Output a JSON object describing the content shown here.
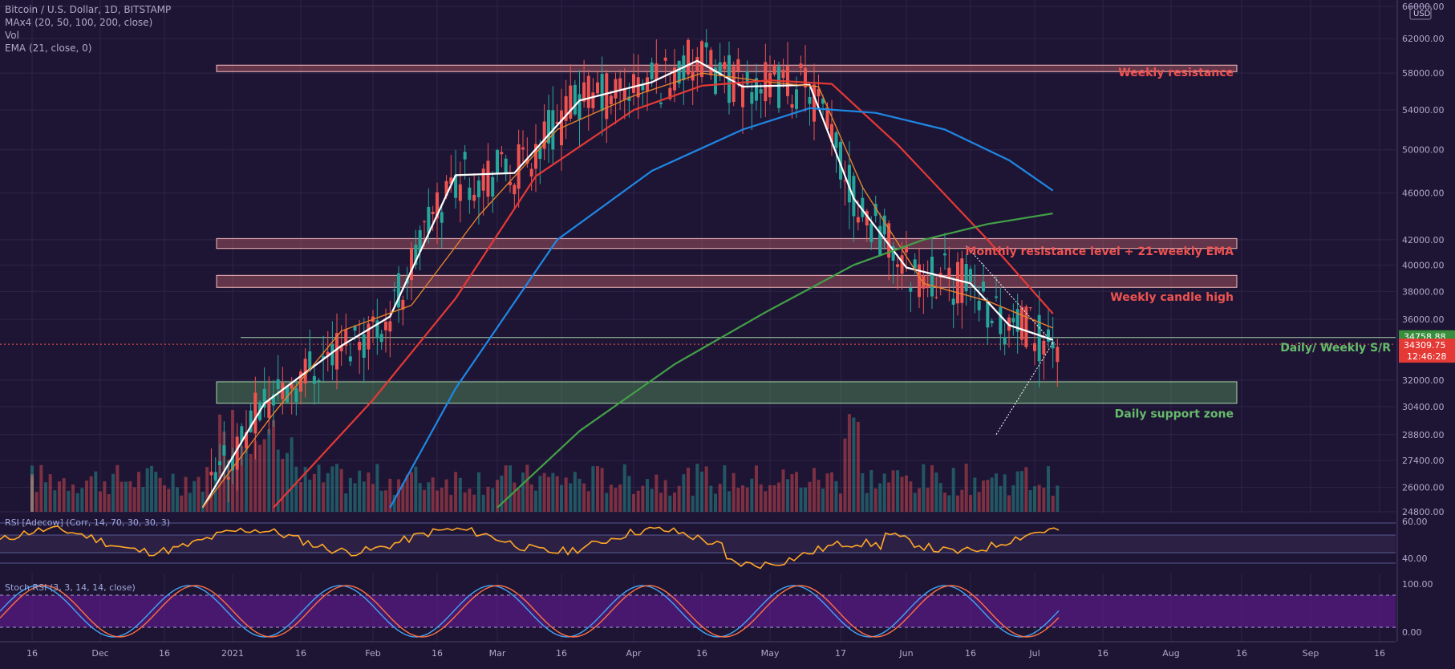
{
  "header": {
    "lines": [
      "Bitcoin / U.S. Dollar, 1D, BITSTAMP",
      "MAx4 (20, 50, 100, 200, close)",
      "Vol",
      "EMA (21, close, 0)"
    ]
  },
  "price_axis": {
    "currency": "USD",
    "ticks": [
      "66000.00",
      "62000.00",
      "58000.00",
      "54000.00",
      "50000.00",
      "46000.00",
      "42000.00",
      "40000.00",
      "38000.00",
      "36000.00",
      "32000.00",
      "30400.00",
      "28800.00",
      "27400.00",
      "26000.00",
      "24800.00"
    ]
  },
  "rsi_axis": {
    "ticks": [
      "60.00",
      "40.00"
    ]
  },
  "stoch_axis": {
    "ticks": [
      "100.00",
      "0.00"
    ]
  },
  "time_axis": {
    "ticks": [
      "16",
      "Dec",
      "16",
      "2021",
      "16",
      "Feb",
      "16",
      "Mar",
      "16",
      "Apr",
      "16",
      "May",
      "17",
      "Jun",
      "16",
      "Jul",
      "16",
      "Aug",
      "16",
      "Sep",
      "16"
    ]
  },
  "price_labels": {
    "level_price": "34758.88",
    "last_price": "34309.75",
    "countdown": "12:46:28"
  },
  "annotations": {
    "weekly_resistance": "Weekly resistance",
    "monthly_resistance": "Monthly resistance level + 21-weekly EMA",
    "weekly_candle_high": "Weekly candle high",
    "daily_weekly_sr": "Daily/ Weekly S/R",
    "daily_support": "Daily support zone"
  },
  "indicators": {
    "rsi_label": "RSI [Adecow] (Corr, 14, 70, 30, 30, 3)",
    "stoch_label": "Stoch RSI (3, 3, 14, 14, close)"
  },
  "colors": {
    "background": "#1e1535",
    "up_candle": "#26a69a",
    "down_candle": "#ef5350",
    "ma20": "#ffffff",
    "ema21": "#e8822a",
    "ma50": "#e53935",
    "ma100": "#1e88e5",
    "ma200": "#43a047",
    "resistance_zone": "#e57373",
    "support_zone": "#66bb6a",
    "stoch_band": "#6a1b9a"
  },
  "chart_data": {
    "type": "line",
    "title": "Bitcoin / U.S. Dollar, 1D, BITSTAMP",
    "ylabel": "USD",
    "ylim": [
      24800,
      66000
    ],
    "resistance_zones": [
      {
        "name": "Weekly resistance",
        "low": 58300,
        "high": 58900
      },
      {
        "name": "Monthly resistance level + 21-weekly EMA",
        "low": 41300,
        "high": 42100
      },
      {
        "name": "Weekly candle high",
        "low": 38300,
        "high": 39200
      }
    ],
    "support_zones": [
      {
        "name": "Daily support zone",
        "low": 30600,
        "high": 31900
      }
    ],
    "sr_level": 34758.88,
    "last_close": 34309.75,
    "series": [
      {
        "name": "MA 20",
        "x": [
          "2020-12-25",
          "2021-01-08",
          "2021-01-25",
          "2021-02-05",
          "2021-02-20",
          "2021-03-05",
          "2021-03-20",
          "2021-04-05",
          "2021-04-15",
          "2021-04-25",
          "2021-05-10",
          "2021-05-20",
          "2021-06-01",
          "2021-06-16",
          "2021-06-25",
          "2021-07-05"
        ],
        "y": [
          25000,
          30600,
          34200,
          36200,
          47600,
          47800,
          55000,
          57000,
          59400,
          56500,
          56700,
          45500,
          39800,
          38600,
          35600,
          34600
        ]
      },
      {
        "name": "EMA 21",
        "x": [
          "2020-12-25",
          "2021-01-10",
          "2021-01-25",
          "2021-02-10",
          "2021-02-25",
          "2021-03-15",
          "2021-04-01",
          "2021-04-16",
          "2021-05-01",
          "2021-05-12",
          "2021-05-22",
          "2021-06-05",
          "2021-06-20",
          "2021-07-05"
        ],
        "y": [
          25000,
          30000,
          35200,
          37000,
          44000,
          52000,
          55500,
          58000,
          57000,
          56500,
          46500,
          38600,
          37300,
          35400
        ]
      },
      {
        "name": "MA 50",
        "x": [
          "2021-01-10",
          "2021-02-01",
          "2021-02-20",
          "2021-03-10",
          "2021-04-01",
          "2021-04-16",
          "2021-05-01",
          "2021-05-15",
          "2021-05-30",
          "2021-06-20",
          "2021-07-05"
        ],
        "y": [
          25000,
          30800,
          37500,
          47500,
          54000,
          56600,
          57200,
          56800,
          50500,
          42000,
          36400
        ]
      },
      {
        "name": "MA 100",
        "x": [
          "2021-02-05",
          "2021-02-20",
          "2021-03-15",
          "2021-04-05",
          "2021-04-25",
          "2021-05-10",
          "2021-05-25",
          "2021-06-10",
          "2021-06-25",
          "2021-07-05"
        ],
        "y": [
          25000,
          31500,
          42000,
          48000,
          52000,
          54200,
          53700,
          52000,
          49000,
          46200
        ]
      },
      {
        "name": "MA 200",
        "x": [
          "2021-03-01",
          "2021-03-20",
          "2021-04-10",
          "2021-04-30",
          "2021-05-20",
          "2021-06-05",
          "2021-06-20",
          "2021-07-05"
        ],
        "y": [
          25000,
          29000,
          33000,
          36500,
          40000,
          42000,
          43300,
          44200
        ]
      }
    ]
  }
}
